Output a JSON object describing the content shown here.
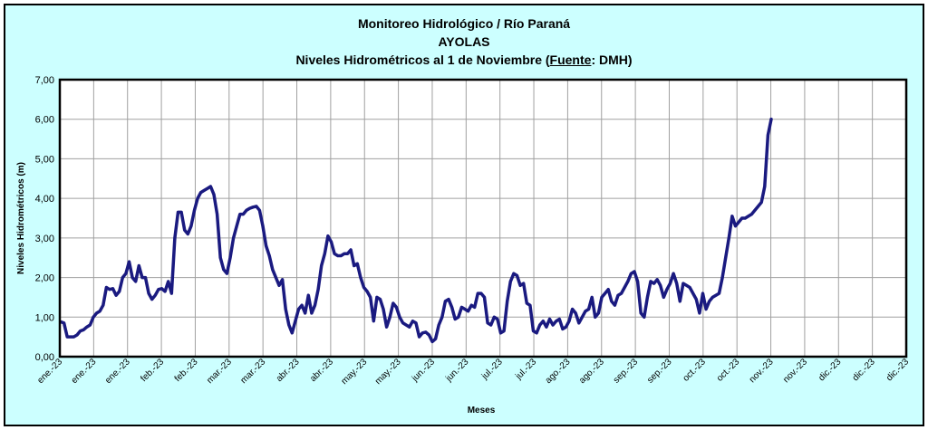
{
  "chart_data": {
    "type": "line",
    "title": "Monitoreo Hidrológico / Río Paraná",
    "subtitle": "AYOLAS",
    "subtitle2_pre": "Niveles Hidrométricos al 1 de Noviembre (",
    "subtitle2_source_word": "Fuente",
    "subtitle2_post": ": DMH)",
    "xlabel": "Meses",
    "ylabel": "Niveles Hidrométricos (m)",
    "ylim": [
      0,
      7
    ],
    "yticks": [
      "0,00",
      "1,00",
      "2,00",
      "3,00",
      "4,00",
      "5,00",
      "6,00",
      "7,00"
    ],
    "xticks": [
      "ene.-23",
      "ene.-23",
      "ene.-23",
      "feb.-23",
      "feb.-23",
      "mar.-23",
      "mar.-23",
      "abr.-23",
      "abr.-23",
      "may.-23",
      "may.-23",
      "jun.-23",
      "jun.-23",
      "jul.-23",
      "jul.-23",
      "ago.-23",
      "ago.-23",
      "sep.-23",
      "sep.-23",
      "oct.-23",
      "oct.-23",
      "nov.-23",
      "nov.-23",
      "dic.-23",
      "dic.-23",
      "dic.-23"
    ],
    "grid": true,
    "line_color": "#1a1a80",
    "series": [
      {
        "values": [
          0.88,
          0.85,
          0.5,
          0.5,
          0.5,
          0.55,
          0.65,
          0.68,
          0.75,
          0.8,
          1.0,
          1.1,
          1.15,
          1.3,
          1.75,
          1.7,
          1.72,
          1.55,
          1.65,
          2.0,
          2.1,
          2.4,
          2.0,
          1.9,
          2.3,
          2.0,
          2.0,
          1.6,
          1.45,
          1.55,
          1.7,
          1.72,
          1.65,
          1.9,
          1.6,
          3.0,
          3.65,
          3.65,
          3.2,
          3.1,
          3.3,
          3.7,
          4.0,
          4.15,
          4.2,
          4.25,
          4.3,
          4.1,
          3.6,
          2.5,
          2.2,
          2.1,
          2.5,
          3.0,
          3.3,
          3.6,
          3.6,
          3.7,
          3.75,
          3.78,
          3.8,
          3.7,
          3.3,
          2.8,
          2.55,
          2.2,
          2.0,
          1.8,
          1.95,
          1.2,
          0.8,
          0.6,
          0.9,
          1.2,
          1.3,
          1.1,
          1.55,
          1.1,
          1.3,
          1.7,
          2.3,
          2.6,
          3.05,
          2.9,
          2.6,
          2.55,
          2.55,
          2.6,
          2.6,
          2.7,
          2.3,
          2.35,
          2.0,
          1.75,
          1.65,
          1.5,
          0.9,
          1.5,
          1.45,
          1.2,
          0.75,
          1.0,
          1.35,
          1.25,
          1.0,
          0.85,
          0.8,
          0.75,
          0.9,
          0.85,
          0.5,
          0.6,
          0.62,
          0.55,
          0.38,
          0.45,
          0.8,
          1.0,
          1.4,
          1.45,
          1.25,
          0.95,
          1.0,
          1.25,
          1.2,
          1.15,
          1.3,
          1.25,
          1.6,
          1.6,
          1.5,
          0.85,
          0.8,
          1.0,
          0.95,
          0.6,
          0.65,
          1.4,
          1.9,
          2.1,
          2.05,
          1.8,
          1.85,
          1.35,
          1.3,
          0.65,
          0.6,
          0.8,
          0.9,
          0.75,
          0.95,
          0.8,
          0.9,
          0.95,
          0.7,
          0.75,
          0.9,
          1.2,
          1.1,
          0.85,
          1.0,
          1.15,
          1.2,
          1.5,
          1.0,
          1.1,
          1.5,
          1.6,
          1.7,
          1.4,
          1.3,
          1.55,
          1.6,
          1.75,
          1.9,
          2.1,
          2.15,
          1.9,
          1.1,
          1.0,
          1.5,
          1.9,
          1.85,
          1.95,
          1.8,
          1.5,
          1.7,
          1.85,
          2.1,
          1.85,
          1.4,
          1.85,
          1.8,
          1.75,
          1.6,
          1.45,
          1.1,
          1.6,
          1.2,
          1.4,
          1.5,
          1.55,
          1.6,
          2.0,
          2.5,
          3.0,
          3.55,
          3.3,
          3.4,
          3.5,
          3.5,
          3.55,
          3.6,
          3.7,
          3.8,
          3.9,
          4.3,
          5.6,
          6.0
        ]
      }
    ]
  }
}
